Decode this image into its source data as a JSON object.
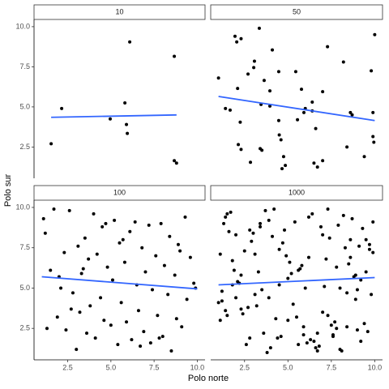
{
  "chart_data": {
    "type": "scatter",
    "x_label": "Polo norte",
    "y_label": "Polo sur",
    "xlim": [
      0.55,
      10.45
    ],
    "ylim": [
      0.55,
      10.45
    ],
    "xticks": [
      2.5,
      {
        "value": 5,
        "label": "5.0"
      },
      7.5,
      {
        "value": 10,
        "label": "10.0"
      }
    ],
    "yticks": [
      2.5,
      {
        "value": 5,
        "label": "5.0"
      },
      7.5,
      {
        "value": 10,
        "label": "10.0"
      }
    ],
    "point_color": "#000000",
    "line_color": "#3366ff",
    "panels": [
      {
        "title": "10",
        "x": [
          1.54,
          2.15,
          6.09,
          5.81,
          4.96,
          5.9,
          5.95,
          8.67,
          8.67,
          8.8
        ],
        "y": [
          2.7,
          4.9,
          9.05,
          5.25,
          4.25,
          3.9,
          3.35,
          8.15,
          1.65,
          1.5
        ],
        "trend": {
          "x": [
            1.54,
            8.8
          ],
          "y": [
            4.35,
            4.5
          ]
        }
      },
      {
        "title": "50",
        "x": [
          1.0,
          1.4,
          1.67,
          1.95,
          2.05,
          2.3,
          2.1,
          2.25,
          2.14,
          2.3,
          2.7,
          2.84,
          3.03,
          3.07,
          3.35,
          3.4,
          3.5,
          3.45,
          3.63,
          3.96,
          3.96,
          4.1,
          4.47,
          4.47,
          4.5,
          4.6,
          4.66,
          4.75,
          4.85,
          5.45,
          5.55,
          5.78,
          5.92,
          6.0,
          6.4,
          6.4,
          6.5,
          6.7,
          7.0,
          6.6,
          7.0,
          7.28,
          8.2,
          8.4,
          8.6,
          8.7,
          9.4,
          9.8,
          9.9,
          9.9,
          9.95,
          10.0
        ],
        "y": [
          6.8,
          4.9,
          4.8,
          9.4,
          9.05,
          9.25,
          6.15,
          4.05,
          2.65,
          2.35,
          7.05,
          1.55,
          7.45,
          7.85,
          9.9,
          2.4,
          2.3,
          5.15,
          6.65,
          5.05,
          6.0,
          8.55,
          7.2,
          4.15,
          3.25,
          2.95,
          1.15,
          1.9,
          1.35,
          7.2,
          4.2,
          6.1,
          4.65,
          4.9,
          4.75,
          5.3,
          1.5,
          1.25,
          1.65,
          3.65,
          5.95,
          8.75,
          7.8,
          2.5,
          4.65,
          4.5,
          1.9,
          7.25,
          4.65,
          3.15,
          2.8,
          9.5
        ],
        "trend": {
          "x": [
            1.0,
            10.0
          ],
          "y": [
            5.65,
            4.15
          ]
        }
      },
      {
        "title": "100",
        "x": [
          1.1,
          1.3,
          1.5,
          1.7,
          1.9,
          2.1,
          2.3,
          2.4,
          2.6,
          2.8,
          3.0,
          3.1,
          3.2,
          3.3,
          3.5,
          3.6,
          3.7,
          3.8,
          4.0,
          4.1,
          4.2,
          4.4,
          4.5,
          4.6,
          4.8,
          5.0,
          5.1,
          5.2,
          5.4,
          5.5,
          5.6,
          5.8,
          5.9,
          6.1,
          6.2,
          6.4,
          6.5,
          6.6,
          6.8,
          6.9,
          7.0,
          7.2,
          7.3,
          7.4,
          7.6,
          7.7,
          7.9,
          8.0,
          8.1,
          8.3,
          8.4,
          8.5,
          8.7,
          8.8,
          9.0,
          9.1,
          9.3,
          9.4,
          9.6,
          9.8,
          2.0,
          3.4,
          4.7,
          5.7,
          6.7,
          7.8,
          8.9,
          1.2,
          2.7,
          9.9
        ],
        "y": [
          9.3,
          2.5,
          6.1,
          9.9,
          3.2,
          5.0,
          7.2,
          2.4,
          9.8,
          4.7,
          1.2,
          7.6,
          3.5,
          5.9,
          8.1,
          2.2,
          6.8,
          3.9,
          9.6,
          1.9,
          7.1,
          4.4,
          8.8,
          3.0,
          6.3,
          2.7,
          5.5,
          9.2,
          1.5,
          7.8,
          4.1,
          6.6,
          2.9,
          8.5,
          1.8,
          9.1,
          5.2,
          3.6,
          7.5,
          2.3,
          6.0,
          8.9,
          1.6,
          4.9,
          7.0,
          3.3,
          9.0,
          2.0,
          6.4,
          4.6,
          8.2,
          1.1,
          5.8,
          3.1,
          7.3,
          2.6,
          9.4,
          4.3,
          6.9,
          5.3,
          5.7,
          6.2,
          9.0,
          8.0,
          1.4,
          1.9,
          7.7,
          8.4,
          3.7,
          5.0
        ],
        "trend": {
          "x": [
            1.0,
            10.0
          ],
          "y": [
            5.7,
            4.95
          ]
        }
      },
      {
        "title": "1000",
        "x": [
          1.2,
          3.4,
          5.6,
          7.8,
          9.9,
          2.3,
          4.5,
          6.7,
          8.9,
          1.5,
          2.8,
          5.1,
          7.3,
          9.5,
          1.8,
          4.0,
          6.2,
          8.4,
          3.1,
          5.9,
          7.0,
          9.2,
          1.1,
          3.7,
          6.5,
          8.6,
          2.0,
          4.8,
          7.6,
          9.7,
          1.4,
          3.9,
          6.0,
          8.1,
          2.5,
          5.3,
          7.9,
          9.4,
          1.9,
          4.2,
          6.8,
          8.8,
          3.0,
          5.5,
          7.2,
          9.0,
          1.3,
          3.5,
          6.3,
          8.3,
          2.2,
          4.6,
          7.4,
          9.8,
          1.7,
          4.3,
          5.8,
          8.0,
          2.9,
          5.0,
          7.7,
          9.3,
          1.0,
          3.3,
          6.1,
          8.7,
          2.4,
          4.9,
          7.1,
          9.6,
          1.6,
          3.8,
          5.7,
          8.2,
          2.7,
          5.2,
          7.5,
          9.1,
          1.2,
          4.1,
          6.6,
          8.5,
          3.2,
          5.4,
          7.8,
          9.9,
          2.1,
          4.4,
          6.9,
          8.9,
          1.8,
          3.6,
          6.4,
          8.0,
          2.6,
          4.7,
          7.0,
          9.5,
          1.4,
          3.1,
          5.9,
          8.6,
          2.3,
          5.0,
          7.3,
          9.2,
          1.1,
          3.9,
          6.2,
          8.4,
          2.0,
          4.5,
          6.7,
          9.7,
          1.5,
          3.4,
          5.6,
          7.6,
          9.0,
          2.8
        ],
        "y": [
          4.2,
          8.8,
          1.5,
          6.3,
          9.1,
          3.7,
          7.4,
          2.2,
          5.8,
          9.6,
          1.9,
          6.6,
          3.3,
          8.0,
          5.2,
          1.3,
          9.4,
          4.7,
          7.1,
          2.6,
          8.3,
          5.5,
          3.0,
          9.8,
          1.7,
          6.9,
          4.4,
          8.6,
          2.1,
          7.7,
          3.6,
          9.2,
          5.0,
          1.1,
          7.3,
          4.0,
          8.9,
          2.8,
          6.1,
          9.9,
          1.4,
          5.7,
          8.4,
          3.2,
          6.8,
          2.4,
          9.0,
          4.9,
          1.8,
          7.5,
          5.3,
          2.0,
          8.1,
          4.6,
          9.7,
          3.1,
          6.4,
          1.2,
          7.9,
          5.6,
          2.9,
          8.7,
          4.1,
          6.0,
          1.6,
          9.3,
          3.4,
          7.0,
          5.1,
          2.3,
          8.5,
          1.0,
          6.2,
          9.5,
          3.8,
          5.9,
          2.7,
          7.6,
          4.8,
          8.2,
          1.3,
          6.5,
          3.9,
          9.1,
          2.5,
          7.2,
          5.4,
          1.9,
          8.8,
          4.3,
          6.7,
          2.2,
          9.6,
          5.0,
          1.5,
          7.8,
          3.5,
          6.0,
          9.4,
          4.6,
          2.1,
          8.0,
          5.8,
          3.0,
          9.9,
          1.7,
          7.1,
          4.4,
          6.9,
          2.6,
          8.3,
          5.2,
          1.1,
          7.4,
          3.3,
          9.0,
          6.1,
          2.0,
          4.9,
          8.6
        ],
        "trend": {
          "x": [
            1.0,
            10.0
          ],
          "y": [
            5.2,
            5.65
          ]
        }
      }
    ]
  }
}
